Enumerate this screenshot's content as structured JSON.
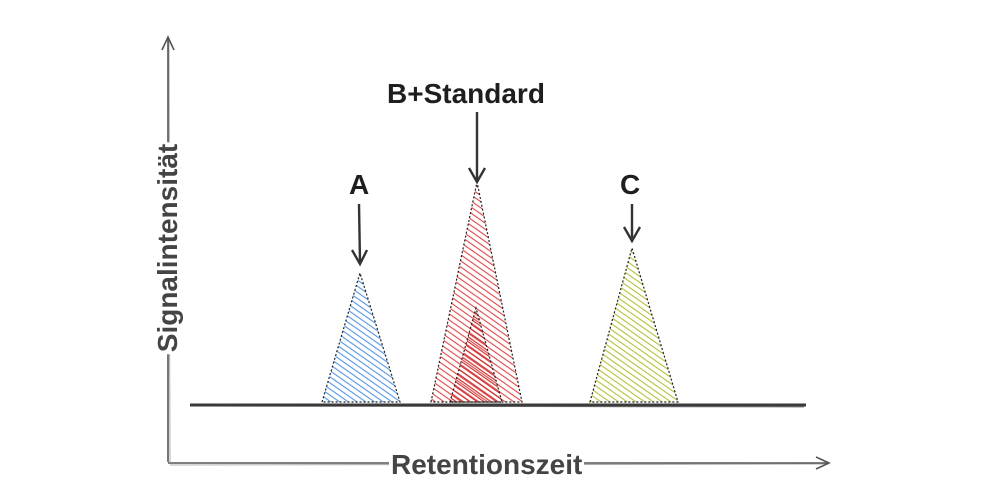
{
  "axes": {
    "x_label": "Retentionszeit",
    "y_label": "Signalintensität"
  },
  "peaks": [
    {
      "label": "A",
      "color": "#4a90e2"
    },
    {
      "label": "B+Standard",
      "color": "#e03131"
    },
    {
      "label": "C",
      "color": "#b5bd2a"
    }
  ],
  "colors": {
    "stroke": "#1e1e1e",
    "axis": "#555555"
  }
}
